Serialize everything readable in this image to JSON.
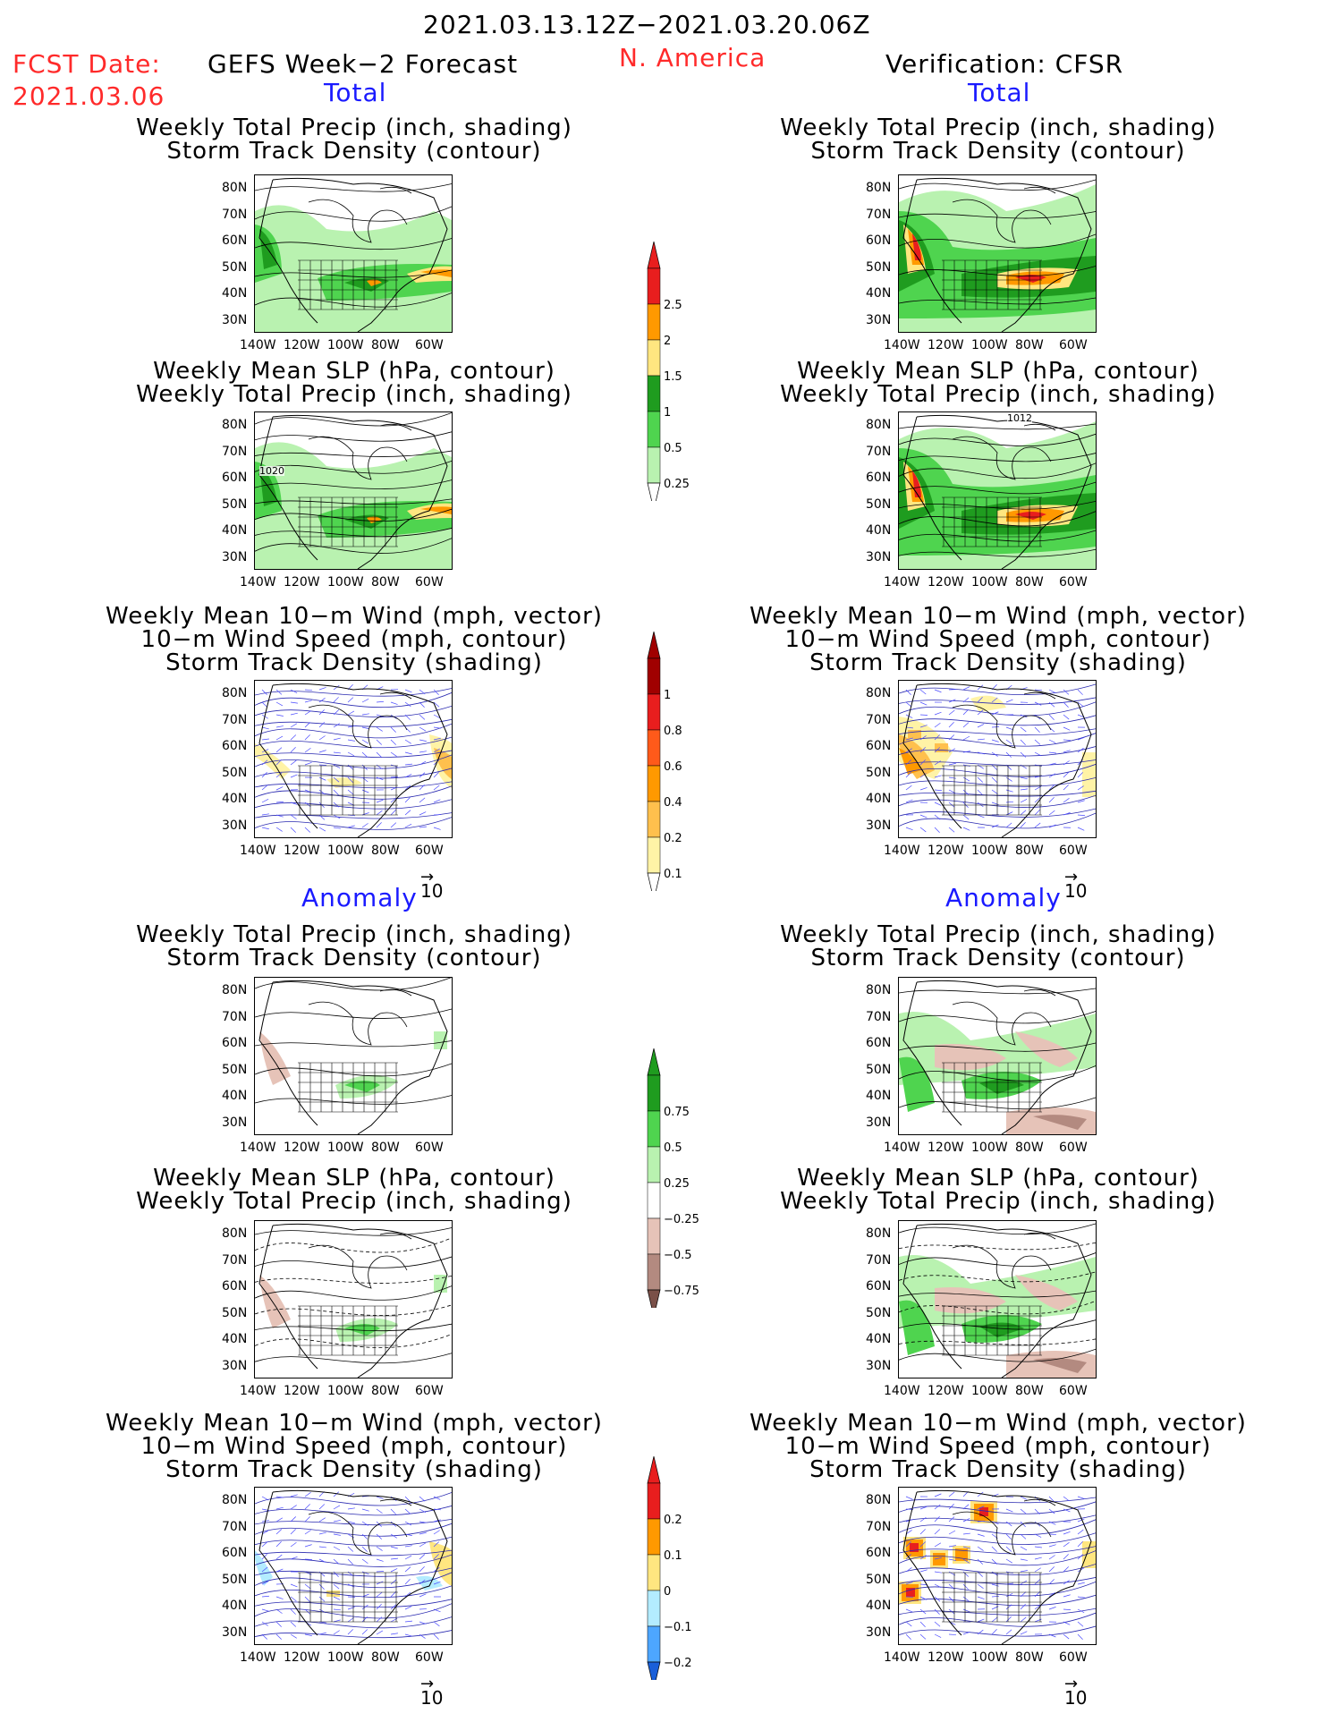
{
  "header": {
    "period": "2021.03.13.12Z−2021.03.20.06Z",
    "fcst_label": "FCST Date:",
    "fcst_date": "2021.03.06",
    "model": "GEFS Week−2 Forecast",
    "region": "N. America",
    "verification": "Verification: CFSR"
  },
  "sections": {
    "total": "Total",
    "anomaly": "Anomaly"
  },
  "panel_titles": {
    "precip_track": [
      "Weekly Total Precip (inch, shading)",
      "Storm Track Density (contour)"
    ],
    "slp_precip": [
      "Weekly Mean SLP (hPa, contour)",
      "Weekly Total Precip (inch, shading)"
    ],
    "wind_track": [
      "Weekly Mean 10−m Wind (mph, vector)",
      "10−m Wind Speed (mph, contour)",
      "Storm Track Density (shading)"
    ]
  },
  "axes": {
    "lat_labels": [
      "80N",
      "70N",
      "60N",
      "50N",
      "40N",
      "30N"
    ],
    "lon_labels": [
      "140W",
      "120W",
      "100W",
      "80W",
      "60W"
    ]
  },
  "map_labels": {
    "gefs_slp": "1020",
    "cfsr_slp": "1012"
  },
  "vector_reference": "10",
  "colorbars": {
    "total_precip": {
      "labels": [
        "2.5",
        "2",
        "1.5",
        "1",
        "0.5",
        "0.25"
      ],
      "colors": [
        "#e81e1e",
        "#ff9900",
        "#ffe680",
        "#1f9c1f",
        "#4fd44f",
        "#b9f2b0"
      ]
    },
    "total_track": {
      "labels": [
        "1",
        "0.8",
        "0.6",
        "0.4",
        "0.2",
        "0.1"
      ],
      "colors": [
        "#a00000",
        "#e81e1e",
        "#ff5a1a",
        "#ff9900",
        "#ffc04d",
        "#fff3a6"
      ]
    },
    "anom_precip": {
      "labels": [
        "0.75",
        "0.5",
        "0.25",
        "−0.25",
        "−0.5",
        "−0.75"
      ],
      "colors": [
        "#1f9c1f",
        "#4fd44f",
        "#b9f2b0",
        "#ffffff",
        "#e6c3b8",
        "#b38a80",
        "#7a5048"
      ]
    },
    "anom_track": {
      "labels": [
        "0.2",
        "0.1",
        "0",
        "−0.1",
        "−0.2"
      ],
      "colors": [
        "#e81e1e",
        "#ff9900",
        "#ffe680",
        "#b3ecff",
        "#4da6ff",
        "#1a5fd9"
      ]
    }
  }
}
